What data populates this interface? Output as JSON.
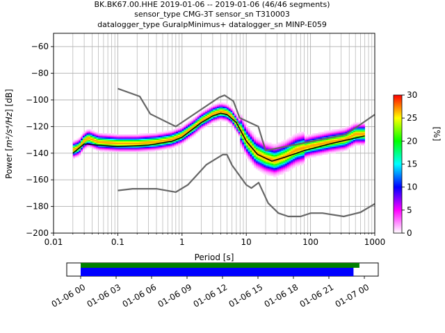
{
  "title": {
    "line1": "BK.BK67.00.HHE   2019-01-06 -- 2019-01-06  (46/46 segments)",
    "line2": "sensor_type CMG-3T sensor_sn T310003",
    "line3": "datalogger_type GuralpMinimus+ datalogger_sn MINP-E059"
  },
  "chart_data": {
    "type": "heatmap",
    "xlabel": "Period [s]",
    "ylabel_prefix": "Power [",
    "ylabel_unit": "m²/s⁴/Hz",
    "ylabel_suffix": "] [dB]",
    "xscale": "log",
    "xlim": [
      0.01,
      1000
    ],
    "ylim": [
      -200,
      -50
    ],
    "x_ticks": [
      {
        "value": 0.01,
        "label": "0.01"
      },
      {
        "value": 0.1,
        "label": "0.1"
      },
      {
        "value": 1,
        "label": "1"
      },
      {
        "value": 10,
        "label": "10"
      },
      {
        "value": 100,
        "label": "100"
      },
      {
        "value": 1000,
        "label": "1000"
      }
    ],
    "y_ticks": [
      {
        "value": -60,
        "label": "−60"
      },
      {
        "value": -80,
        "label": "−80"
      },
      {
        "value": -100,
        "label": "−100"
      },
      {
        "value": -120,
        "label": "−120"
      },
      {
        "value": -140,
        "label": "−140"
      },
      {
        "value": -160,
        "label": "−160"
      },
      {
        "value": -180,
        "label": "−180"
      },
      {
        "value": -200,
        "label": "−200"
      }
    ],
    "grid": true,
    "colorbar": {
      "label": "[%]",
      "min": 0,
      "max": 30,
      "ticks": [
        {
          "value": 0,
          "label": "0"
        },
        {
          "value": 5,
          "label": "5"
        },
        {
          "value": 10,
          "label": "10"
        },
        {
          "value": 15,
          "label": "15"
        },
        {
          "value": 20,
          "label": "20"
        },
        {
          "value": 25,
          "label": "25"
        },
        {
          "value": 30,
          "label": "30"
        }
      ],
      "colors": [
        "#ffffff",
        "#ff00ff",
        "#0000ff",
        "#00ffff",
        "#00ff00",
        "#ffff00",
        "#ff0000"
      ]
    },
    "noise_model_high": [
      {
        "x": 0.1,
        "y": -91.5
      },
      {
        "x": 0.22,
        "y": -97.4
      },
      {
        "x": 0.32,
        "y": -110.5
      },
      {
        "x": 0.8,
        "y": -120.0
      },
      {
        "x": 3.8,
        "y": -98.0
      },
      {
        "x": 4.6,
        "y": -96.5
      },
      {
        "x": 6.3,
        "y": -101.0
      },
      {
        "x": 7.9,
        "y": -113.5
      },
      {
        "x": 15.4,
        "y": -120.0
      },
      {
        "x": 20.0,
        "y": -138.0
      },
      {
        "x": 354.8,
        "y": -126.0
      },
      {
        "x": 1000,
        "y": -111.0
      }
    ],
    "noise_model_low": [
      {
        "x": 0.1,
        "y": -168.0
      },
      {
        "x": 0.17,
        "y": -166.7
      },
      {
        "x": 0.4,
        "y": -166.7
      },
      {
        "x": 0.8,
        "y": -169.2
      },
      {
        "x": 1.24,
        "y": -163.7
      },
      {
        "x": 2.4,
        "y": -148.6
      },
      {
        "x": 4.3,
        "y": -141.1
      },
      {
        "x": 5.0,
        "y": -141.1
      },
      {
        "x": 6.0,
        "y": -149.0
      },
      {
        "x": 10.0,
        "y": -163.8
      },
      {
        "x": 12.0,
        "y": -166.2
      },
      {
        "x": 15.6,
        "y": -162.1
      },
      {
        "x": 21.9,
        "y": -177.5
      },
      {
        "x": 31.6,
        "y": -185.0
      },
      {
        "x": 45.0,
        "y": -187.5
      },
      {
        "x": 70.0,
        "y": -187.5
      },
      {
        "x": 101.0,
        "y": -185.0
      },
      {
        "x": 154.0,
        "y": -185.0
      },
      {
        "x": 328.0,
        "y": -187.5
      },
      {
        "x": 600.0,
        "y": -184.4
      },
      {
        "x": 1000,
        "y": -178.0
      }
    ],
    "mode": [
      {
        "x": 0.02,
        "y": -138
      },
      {
        "x": 0.025,
        "y": -136
      },
      {
        "x": 0.03,
        "y": -131
      },
      {
        "x": 0.035,
        "y": -129
      },
      {
        "x": 0.05,
        "y": -132
      },
      {
        "x": 0.1,
        "y": -133
      },
      {
        "x": 0.2,
        "y": -133
      },
      {
        "x": 0.4,
        "y": -132
      },
      {
        "x": 0.7,
        "y": -130
      },
      {
        "x": 1.0,
        "y": -127
      },
      {
        "x": 1.5,
        "y": -121
      },
      {
        "x": 2.0,
        "y": -116
      },
      {
        "x": 3.0,
        "y": -111
      },
      {
        "x": 4.0,
        "y": -109
      },
      {
        "x": 5.0,
        "y": -110
      },
      {
        "x": 6.0,
        "y": -113
      },
      {
        "x": 8.0,
        "y": -122
      },
      {
        "x": 10.0,
        "y": -131
      },
      {
        "x": 14.0,
        "y": -140
      },
      {
        "x": 20.0,
        "y": -144
      },
      {
        "x": 28.0,
        "y": -146
      },
      {
        "x": 40.0,
        "y": -143
      },
      {
        "x": 60.0,
        "y": -138
      },
      {
        "x": 100.0,
        "y": -135
      },
      {
        "x": 200.0,
        "y": -132
      },
      {
        "x": 350.0,
        "y": -130
      },
      {
        "x": 500.0,
        "y": -126
      },
      {
        "x": 700.0,
        "y": -126
      }
    ],
    "mean": [
      {
        "x": 0.02,
        "y": -140
      },
      {
        "x": 0.03,
        "y": -133
      },
      {
        "x": 0.05,
        "y": -134
      },
      {
        "x": 0.1,
        "y": -135
      },
      {
        "x": 0.3,
        "y": -134
      },
      {
        "x": 0.7,
        "y": -131
      },
      {
        "x": 1.0,
        "y": -128
      },
      {
        "x": 2.0,
        "y": -117
      },
      {
        "x": 3.0,
        "y": -112
      },
      {
        "x": 4.0,
        "y": -110
      },
      {
        "x": 5.0,
        "y": -111
      },
      {
        "x": 7.0,
        "y": -117
      },
      {
        "x": 10.0,
        "y": -131
      },
      {
        "x": 15.0,
        "y": -141
      },
      {
        "x": 25.0,
        "y": -146
      },
      {
        "x": 40.0,
        "y": -143
      },
      {
        "x": 80.0,
        "y": -138
      },
      {
        "x": 200.0,
        "y": -133
      },
      {
        "x": 700.0,
        "y": -127
      }
    ],
    "timeline": {
      "start": "2019-01-06T00:00",
      "end": "2019-01-07T00:00",
      "data_span": {
        "start": "2019-01-06T00:00",
        "end": "2019-01-06T23:35"
      },
      "psd_span": {
        "start": "2019-01-06T00:00",
        "end": "2019-01-06T23:05"
      },
      "data_color": "#008000",
      "psd_color": "#0000ff",
      "ticks": [
        {
          "hour": 0,
          "label": "01-06 00"
        },
        {
          "hour": 3,
          "label": "01-06 03"
        },
        {
          "hour": 6,
          "label": "01-06 06"
        },
        {
          "hour": 9,
          "label": "01-06 09"
        },
        {
          "hour": 12,
          "label": "01-06 12"
        },
        {
          "hour": 15,
          "label": "01-06 15"
        },
        {
          "hour": 18,
          "label": "01-06 18"
        },
        {
          "hour": 21,
          "label": "01-06 21"
        },
        {
          "hour": 24,
          "label": "01-07 00"
        }
      ]
    }
  }
}
